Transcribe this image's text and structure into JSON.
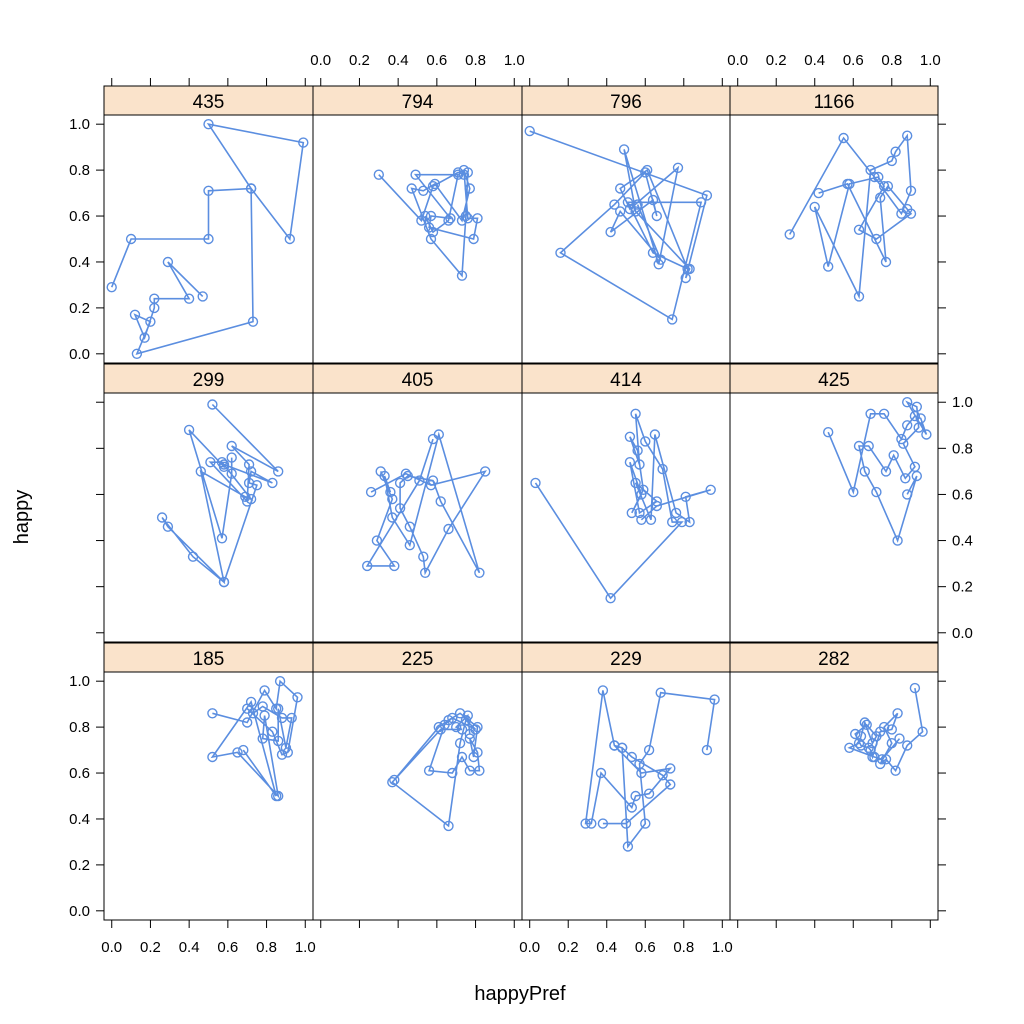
{
  "chart_data": {
    "type": "scatter",
    "subtype": "lattice-connected-scatter",
    "xlabel": "happyPref",
    "ylabel": "happy",
    "xlim": [
      0.0,
      1.0
    ],
    "ylim": [
      0.0,
      1.0
    ],
    "x_ticks": [
      "0.0",
      "0.2",
      "0.4",
      "0.6",
      "0.8",
      "1.0"
    ],
    "y_ticks": [
      "0.0",
      "0.2",
      "0.4",
      "0.6",
      "0.8",
      "1.0"
    ],
    "layout": "4 columns x 3 rows",
    "grid": false,
    "colors": {
      "series": "#5b8ee0",
      "strip": "#fae3cb",
      "frame": "#000000"
    },
    "panels": [
      {
        "label": "435",
        "points": [
          [
            0.0,
            0.29
          ],
          [
            0.1,
            0.5
          ],
          [
            0.5,
            0.5
          ],
          [
            0.5,
            0.71
          ],
          [
            0.72,
            0.72
          ],
          [
            0.5,
            1.0
          ],
          [
            0.99,
            0.92
          ],
          [
            0.92,
            0.5
          ],
          [
            0.72,
            0.72
          ],
          [
            0.73,
            0.14
          ],
          [
            0.13,
            0.0
          ],
          [
            0.2,
            0.14
          ],
          [
            0.12,
            0.17
          ],
          [
            0.17,
            0.07
          ],
          [
            0.22,
            0.2
          ],
          [
            0.22,
            0.24
          ],
          [
            0.4,
            0.24
          ],
          [
            0.29,
            0.4
          ],
          [
            0.47,
            0.25
          ]
        ]
      },
      {
        "label": "794",
        "points": [
          [
            0.3,
            0.78
          ],
          [
            0.52,
            0.58
          ],
          [
            0.58,
            0.73
          ],
          [
            0.71,
            0.79
          ],
          [
            0.74,
            0.78
          ],
          [
            0.76,
            0.79
          ],
          [
            0.75,
            0.6
          ],
          [
            0.73,
            0.34
          ],
          [
            0.57,
            0.5
          ],
          [
            0.47,
            0.72
          ],
          [
            0.53,
            0.71
          ],
          [
            0.59,
            0.74
          ],
          [
            0.73,
            0.58
          ],
          [
            0.77,
            0.72
          ],
          [
            0.74,
            0.8
          ],
          [
            0.76,
            0.59
          ],
          [
            0.81,
            0.59
          ],
          [
            0.79,
            0.5
          ],
          [
            0.56,
            0.55
          ],
          [
            0.57,
            0.6
          ],
          [
            0.67,
            0.59
          ],
          [
            0.49,
            0.78
          ],
          [
            0.71,
            0.78
          ],
          [
            0.66,
            0.58
          ],
          [
            0.58,
            0.53
          ],
          [
            0.54,
            0.6
          ]
        ]
      },
      {
        "label": "796",
        "points": [
          [
            0.0,
            0.97
          ],
          [
            0.92,
            0.69
          ],
          [
            0.81,
            0.33
          ],
          [
            0.83,
            0.37
          ],
          [
            0.55,
            0.62
          ],
          [
            0.49,
            0.89
          ],
          [
            0.67,
            0.39
          ],
          [
            0.77,
            0.81
          ],
          [
            0.52,
            0.63
          ],
          [
            0.47,
            0.72
          ],
          [
            0.61,
            0.8
          ],
          [
            0.82,
            0.37
          ],
          [
            0.64,
            0.44
          ],
          [
            0.51,
            0.66
          ],
          [
            0.89,
            0.66
          ],
          [
            0.74,
            0.15
          ],
          [
            0.16,
            0.44
          ],
          [
            0.44,
            0.65
          ],
          [
            0.6,
            0.79
          ],
          [
            0.66,
            0.6
          ],
          [
            0.64,
            0.67
          ],
          [
            0.42,
            0.53
          ],
          [
            0.47,
            0.62
          ],
          [
            0.68,
            0.41
          ],
          [
            0.56,
            0.65
          ]
        ]
      },
      {
        "label": "1166",
        "points": [
          [
            0.27,
            0.52
          ],
          [
            0.55,
            0.94
          ],
          [
            0.71,
            0.77
          ],
          [
            0.85,
            0.61
          ],
          [
            0.9,
            0.71
          ],
          [
            0.88,
            0.95
          ],
          [
            0.82,
            0.88
          ],
          [
            0.8,
            0.84
          ],
          [
            0.69,
            0.8
          ],
          [
            0.63,
            0.25
          ],
          [
            0.4,
            0.64
          ],
          [
            0.47,
            0.38
          ],
          [
            0.58,
            0.74
          ],
          [
            0.73,
            0.77
          ],
          [
            0.76,
            0.73
          ],
          [
            0.63,
            0.54
          ],
          [
            0.72,
            0.5
          ],
          [
            0.9,
            0.61
          ],
          [
            0.88,
            0.63
          ],
          [
            0.78,
            0.73
          ],
          [
            0.74,
            0.68
          ],
          [
            0.77,
            0.4
          ],
          [
            0.57,
            0.74
          ],
          [
            0.42,
            0.7
          ]
        ]
      },
      {
        "label": "299",
        "points": [
          [
            0.52,
            0.99
          ],
          [
            0.86,
            0.7
          ],
          [
            0.62,
            0.81
          ],
          [
            0.71,
            0.73
          ],
          [
            0.7,
            0.57
          ],
          [
            0.51,
            0.74
          ],
          [
            0.57,
            0.74
          ],
          [
            0.72,
            0.58
          ],
          [
            0.69,
            0.59
          ],
          [
            0.46,
            0.7
          ],
          [
            0.58,
            0.22
          ],
          [
            0.29,
            0.46
          ],
          [
            0.26,
            0.5
          ],
          [
            0.42,
            0.33
          ],
          [
            0.58,
            0.22
          ],
          [
            0.75,
            0.64
          ],
          [
            0.71,
            0.65
          ],
          [
            0.72,
            0.7
          ],
          [
            0.83,
            0.65
          ],
          [
            0.58,
            0.73
          ],
          [
            0.58,
            0.72
          ],
          [
            0.4,
            0.88
          ],
          [
            0.57,
            0.41
          ],
          [
            0.62,
            0.69
          ],
          [
            0.62,
            0.76
          ]
        ]
      },
      {
        "label": "405",
        "points": [
          [
            0.58,
            0.84
          ],
          [
            0.51,
            0.66
          ],
          [
            0.24,
            0.29
          ],
          [
            0.38,
            0.29
          ],
          [
            0.29,
            0.4
          ],
          [
            0.37,
            0.58
          ],
          [
            0.31,
            0.7
          ],
          [
            0.36,
            0.61
          ],
          [
            0.33,
            0.68
          ],
          [
            0.37,
            0.5
          ],
          [
            0.46,
            0.38
          ],
          [
            0.61,
            0.86
          ],
          [
            0.82,
            0.26
          ],
          [
            0.62,
            0.57
          ],
          [
            0.58,
            0.66
          ],
          [
            0.45,
            0.68
          ],
          [
            0.41,
            0.65
          ],
          [
            0.41,
            0.54
          ],
          [
            0.46,
            0.46
          ],
          [
            0.53,
            0.33
          ],
          [
            0.54,
            0.26
          ],
          [
            0.66,
            0.45
          ],
          [
            0.85,
            0.7
          ],
          [
            0.57,
            0.64
          ],
          [
            0.44,
            0.69
          ],
          [
            0.26,
            0.61
          ]
        ]
      },
      {
        "label": "414",
        "points": [
          [
            0.03,
            0.65
          ],
          [
            0.42,
            0.15
          ],
          [
            0.79,
            0.48
          ],
          [
            0.74,
            0.48
          ],
          [
            0.69,
            0.71
          ],
          [
            0.6,
            0.83
          ],
          [
            0.55,
            0.95
          ],
          [
            0.57,
            0.73
          ],
          [
            0.52,
            0.85
          ],
          [
            0.56,
            0.79
          ],
          [
            0.59,
            0.62
          ],
          [
            0.53,
            0.52
          ],
          [
            0.58,
            0.6
          ],
          [
            0.52,
            0.74
          ],
          [
            0.57,
            0.52
          ],
          [
            0.66,
            0.57
          ],
          [
            0.55,
            0.65
          ],
          [
            0.63,
            0.49
          ],
          [
            0.65,
            0.86
          ],
          [
            0.76,
            0.52
          ],
          [
            0.83,
            0.48
          ],
          [
            0.81,
            0.59
          ],
          [
            0.94,
            0.62
          ],
          [
            0.66,
            0.55
          ],
          [
            0.58,
            0.49
          ]
        ]
      },
      {
        "label": "425",
        "points": [
          [
            0.47,
            0.87
          ],
          [
            0.6,
            0.61
          ],
          [
            0.69,
            0.95
          ],
          [
            0.76,
            0.95
          ],
          [
            0.85,
            0.84
          ],
          [
            0.88,
            0.9
          ],
          [
            0.92,
            0.94
          ],
          [
            0.95,
            0.93
          ],
          [
            0.98,
            0.86
          ],
          [
            0.88,
            1.0
          ],
          [
            0.93,
            0.98
          ],
          [
            0.94,
            0.89
          ],
          [
            0.86,
            0.82
          ],
          [
            0.92,
            0.72
          ],
          [
            0.87,
            0.67
          ],
          [
            0.81,
            0.77
          ],
          [
            0.77,
            0.7
          ],
          [
            0.68,
            0.81
          ],
          [
            0.63,
            0.81
          ],
          [
            0.66,
            0.7
          ],
          [
            0.72,
            0.61
          ],
          [
            0.83,
            0.4
          ],
          [
            0.93,
            0.68
          ],
          [
            0.88,
            0.6
          ]
        ]
      },
      {
        "label": "185",
        "points": [
          [
            0.52,
            0.86
          ],
          [
            0.7,
            0.82
          ],
          [
            0.79,
            0.96
          ],
          [
            0.85,
            0.88
          ],
          [
            0.87,
            1.0
          ],
          [
            0.96,
            0.93
          ],
          [
            0.91,
            0.69
          ],
          [
            0.88,
            0.68
          ],
          [
            0.83,
            0.78
          ],
          [
            0.7,
            0.88
          ],
          [
            0.73,
            0.86
          ],
          [
            0.78,
            0.89
          ],
          [
            0.88,
            0.84
          ],
          [
            0.93,
            0.84
          ],
          [
            0.9,
            0.71
          ],
          [
            0.86,
            0.88
          ],
          [
            0.86,
            0.74
          ],
          [
            0.78,
            0.75
          ],
          [
            0.79,
            0.85
          ],
          [
            0.86,
            0.5
          ],
          [
            0.65,
            0.69
          ],
          [
            0.52,
            0.67
          ],
          [
            0.72,
            0.91
          ],
          [
            0.85,
            0.5
          ],
          [
            0.68,
            0.7
          ]
        ]
      },
      {
        "label": "225",
        "points": [
          [
            0.38,
            0.57
          ],
          [
            0.61,
            0.8
          ],
          [
            0.66,
            0.83
          ],
          [
            0.72,
            0.86
          ],
          [
            0.81,
            0.8
          ],
          [
            0.79,
            0.67
          ],
          [
            0.77,
            0.75
          ],
          [
            0.81,
            0.69
          ],
          [
            0.82,
            0.61
          ],
          [
            0.77,
            0.61
          ],
          [
            0.73,
            0.67
          ],
          [
            0.68,
            0.6
          ],
          [
            0.56,
            0.61
          ],
          [
            0.64,
            0.81
          ],
          [
            0.68,
            0.84
          ],
          [
            0.8,
            0.79
          ],
          [
            0.75,
            0.83
          ],
          [
            0.72,
            0.73
          ],
          [
            0.66,
            0.37
          ],
          [
            0.37,
            0.56
          ],
          [
            0.62,
            0.79
          ],
          [
            0.73,
            0.79
          ],
          [
            0.7,
            0.8
          ],
          [
            0.76,
            0.85
          ],
          [
            0.77,
            0.77
          ]
        ]
      },
      {
        "label": "229",
        "points": [
          [
            0.38,
            0.38
          ],
          [
            0.5,
            0.38
          ],
          [
            0.73,
            0.55
          ],
          [
            0.69,
            0.59
          ],
          [
            0.53,
            0.67
          ],
          [
            0.48,
            0.71
          ],
          [
            0.44,
            0.72
          ],
          [
            0.58,
            0.6
          ],
          [
            0.73,
            0.62
          ],
          [
            0.62,
            0.51
          ],
          [
            0.55,
            0.5
          ],
          [
            0.53,
            0.45
          ],
          [
            0.37,
            0.6
          ],
          [
            0.32,
            0.38
          ],
          [
            0.29,
            0.38
          ],
          [
            0.38,
            0.96
          ],
          [
            0.44,
            0.72
          ],
          [
            0.48,
            0.71
          ],
          [
            0.51,
            0.28
          ],
          [
            0.6,
            0.38
          ],
          [
            0.57,
            0.64
          ],
          [
            0.62,
            0.7
          ],
          [
            0.68,
            0.95
          ],
          [
            0.96,
            0.92
          ],
          [
            0.92,
            0.7
          ]
        ]
      },
      {
        "label": "282",
        "points": [
          [
            0.92,
            0.97
          ],
          [
            0.96,
            0.78
          ],
          [
            0.88,
            0.72
          ],
          [
            0.82,
            0.61
          ],
          [
            0.77,
            0.66
          ],
          [
            0.74,
            0.64
          ],
          [
            0.8,
            0.73
          ],
          [
            0.76,
            0.8
          ],
          [
            0.83,
            0.86
          ],
          [
            0.8,
            0.79
          ],
          [
            0.74,
            0.78
          ],
          [
            0.7,
            0.67
          ],
          [
            0.69,
            0.7
          ],
          [
            0.68,
            0.71
          ],
          [
            0.64,
            0.72
          ],
          [
            0.61,
            0.77
          ],
          [
            0.67,
            0.81
          ],
          [
            0.72,
            0.76
          ],
          [
            0.7,
            0.73
          ],
          [
            0.66,
            0.82
          ],
          [
            0.64,
            0.76
          ],
          [
            0.63,
            0.73
          ],
          [
            0.58,
            0.71
          ],
          [
            0.71,
            0.67
          ],
          [
            0.75,
            0.66
          ],
          [
            0.84,
            0.75
          ]
        ]
      }
    ]
  }
}
